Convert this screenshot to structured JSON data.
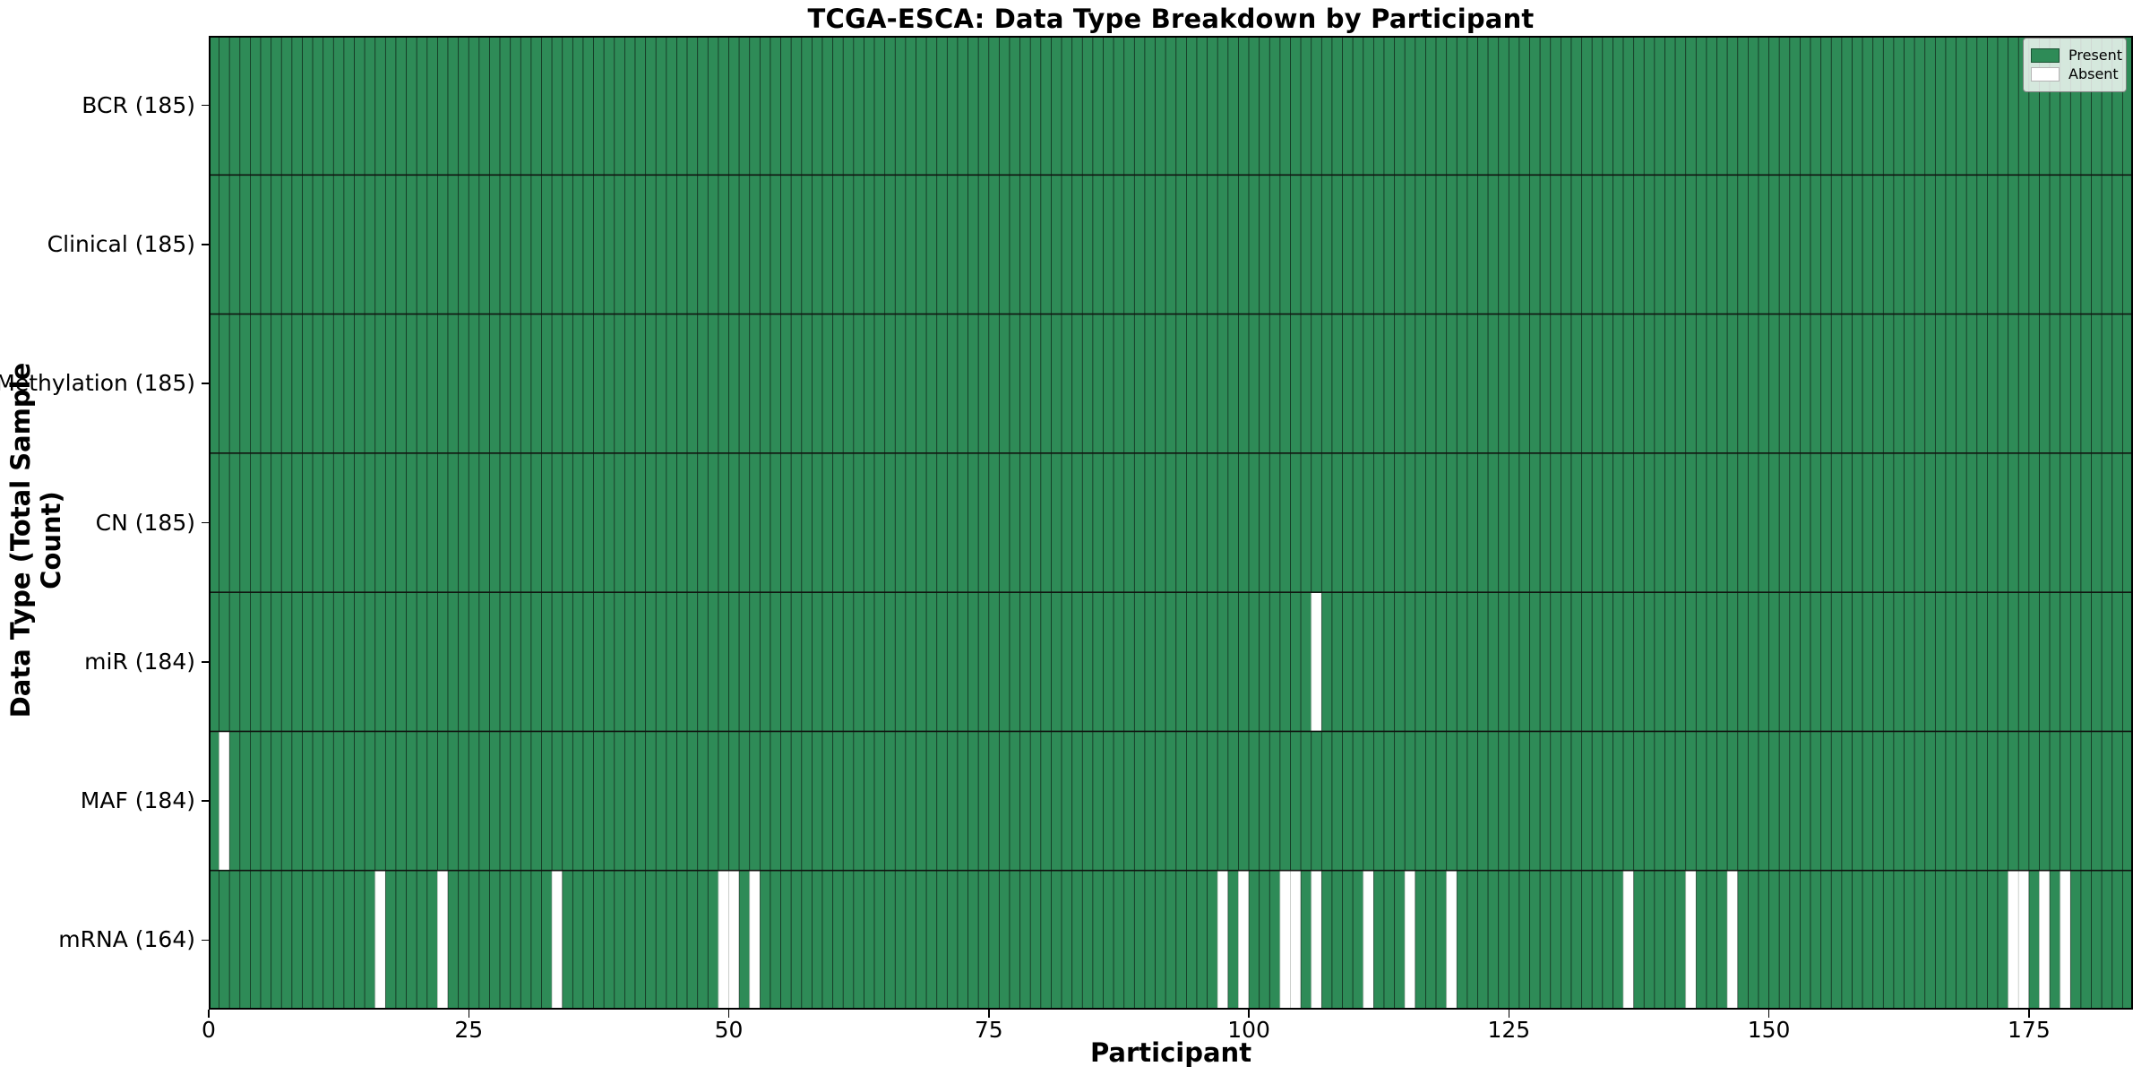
{
  "chart_data": {
    "type": "heatmap",
    "title": "TCGA-ESCA: Data Type Breakdown by Participant",
    "xlabel": "Participant",
    "ylabel": "Data Type (Total Sample Count)",
    "n_participants": 185,
    "x_domain": [
      0,
      185
    ],
    "x_ticks": [
      0,
      25,
      50,
      75,
      100,
      125,
      150,
      175
    ],
    "grid": "cell-edges",
    "legend_position": "upper-right",
    "legend": [
      {
        "label": "Present",
        "color": "#2e8b57"
      },
      {
        "label": "Absent",
        "color": "#ffffff"
      }
    ],
    "colors": {
      "present": "#2e8b57",
      "absent": "#ffffff",
      "present_edge": "rgba(0,0,0,0.55)",
      "absent_edge": "#c6cac6",
      "row_separator": "#101510",
      "spine": "#000000"
    },
    "rows": [
      {
        "label": "BCR (185)",
        "present_count": 185,
        "absent_participants": []
      },
      {
        "label": "Clinical (185)",
        "present_count": 185,
        "absent_participants": []
      },
      {
        "label": "Methylation (185)",
        "present_count": 185,
        "absent_participants": []
      },
      {
        "label": "CN (185)",
        "present_count": 185,
        "absent_participants": []
      },
      {
        "label": "miR (184)",
        "present_count": 184,
        "absent_participants": [
          106
        ]
      },
      {
        "label": "MAF (184)",
        "present_count": 184,
        "absent_participants": [
          1
        ]
      },
      {
        "label": "mRNA (164)",
        "present_count": 164,
        "absent_participants": [
          16,
          22,
          33,
          49,
          50,
          52,
          97,
          99,
          103,
          104,
          106,
          111,
          115,
          119,
          136,
          142,
          146,
          173,
          174,
          176,
          178
        ]
      }
    ]
  }
}
